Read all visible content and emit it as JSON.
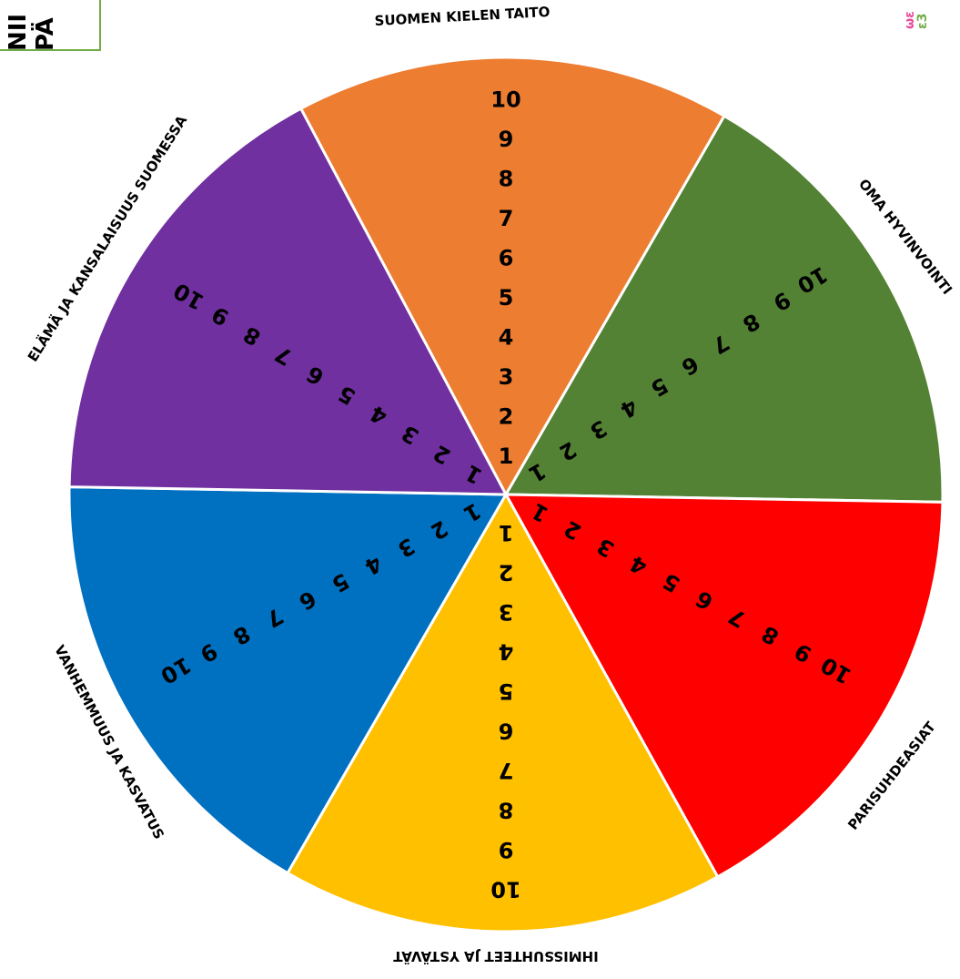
{
  "corner_box": {
    "lines": [
      "NII",
      "PÄ"
    ]
  },
  "logo": {
    "glyphs": [
      "ωε",
      "ε3"
    ],
    "colors": [
      "#e84c9c",
      "#70ad47",
      "#f0a030"
    ]
  },
  "wheel": {
    "scale": [
      "1",
      "2",
      "3",
      "4",
      "5",
      "6",
      "7",
      "8",
      "9",
      "10"
    ],
    "segments": [
      {
        "id": "suomen-kielen-taito",
        "label": "SUOMEN KIELEN TAITO",
        "color": "#ed7d31"
      },
      {
        "id": "oma-hyvinvointi",
        "label": "OMA HYVINVOINTI",
        "color": "#548235"
      },
      {
        "id": "parisuhdeasiat",
        "label": "PARISUHDEASIAT",
        "color": "#ff0000"
      },
      {
        "id": "ihmissuhteet-ja-ystavat",
        "label": "IHMISSUHTEET JA YSTÄVÄT",
        "color": "#ffc000"
      },
      {
        "id": "vanhemmuus-ja-kasvatus",
        "label": "VANHEMMUUS JA KASVATUS",
        "color": "#0070c0"
      },
      {
        "id": "elama-ja-kansalaisuus-suomessa",
        "label": "ELÄMÄ JA KANSALAISUUS SUOMESSA",
        "color": "#7030a0"
      }
    ]
  }
}
